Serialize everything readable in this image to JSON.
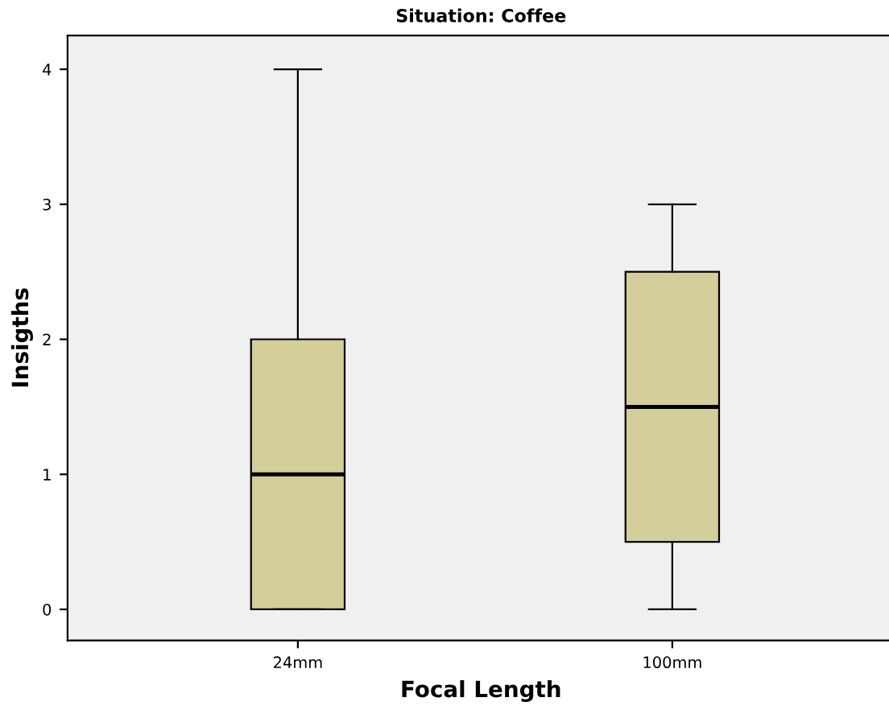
{
  "chart_data": {
    "type": "box",
    "title": "Situation: Coffee",
    "xlabel": "Focal Length",
    "ylabel": "Insigths",
    "categories": [
      "24mm",
      "100mm"
    ],
    "color": "#d3ce9a",
    "boxes": [
      {
        "low": 0,
        "q1": 0,
        "median": 1,
        "q3": 2,
        "high": 4
      },
      {
        "low": 0,
        "q1": 0.5,
        "median": 1.5,
        "q3": 2.5,
        "high": 3
      }
    ],
    "ylim": [
      -0.23,
      4.25
    ],
    "yticks": [
      0,
      1,
      2,
      3,
      4
    ],
    "grid": false,
    "legend": false
  }
}
